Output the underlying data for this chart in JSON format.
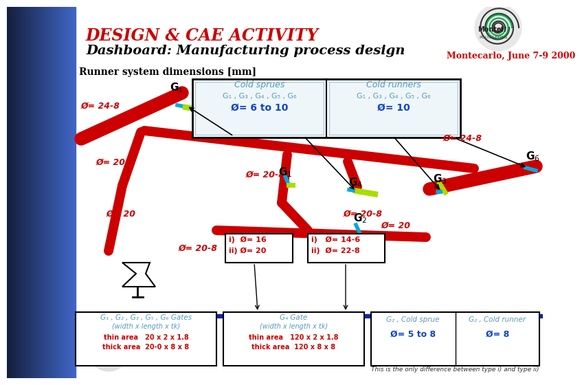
{
  "title1": "DESIGN & CAE ACTIVITY",
  "title2": "Dashboard: Manufacturing process design",
  "subtitle": "Montecarlo, June 7-9 2000",
  "section_label": "Runner system dimensions [mm]",
  "bg_color": "#ffffff",
  "left_bar_color": "#4169c8",
  "title1_color": "#cc0000",
  "title2_color": "#000000",
  "subtitle_color": "#cc0000",
  "section_color": "#000000",
  "runner_color": "#cc0000",
  "annotation_color": "#cc0000",
  "gate_label_color": "#000000",
  "box_text_color": "#5599bb",
  "box_highlight_color": "#cc0000",
  "legend_box": {
    "cold_sprues_title": "Cold sprues",
    "cold_sprues_gates": "G₁ , G₃ , G₄ , G₅ , G₆",
    "cold_sprues_dim": "Ø= 6 to 10",
    "cold_runners_title": "Cold runners",
    "cold_runners_gates": "G₁ , G₃ , G₄ , G₅ , G₆",
    "cold_runners_dim": "Ø= 10"
  },
  "bottom_boxes": {
    "box1_title": "G₁ , G₂ , G₃ , G₅ , G₆ Gates",
    "box1_sub": "(width x length x tk)",
    "box1_line1": "thin area   20 x 2 x 1.8",
    "box1_line2": "thick area  20-0 x 8 x 8",
    "box2_title": "G₄ Gate",
    "box2_sub": "(width x length x tk)",
    "box2_line1": "thin area   120 x 2 x 1.8",
    "box2_line2": "thick area  120 x 8 x 8",
    "box3_title": "G₂ , Cold sprue",
    "box3_dim": "Ø= 5 to 8",
    "box4_title": "G₂ , Cold runner",
    "box4_dim": "Ø= 8",
    "note": "This is the only difference between type i) and type ii)"
  }
}
